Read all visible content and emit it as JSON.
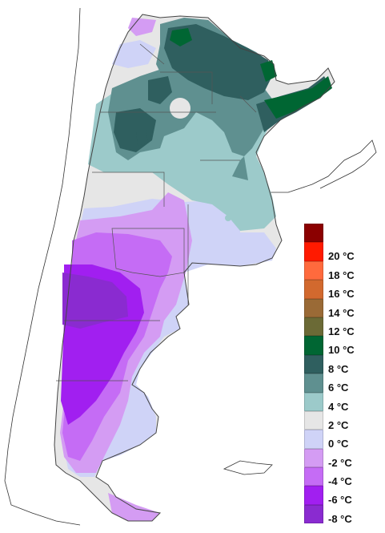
{
  "legend": {
    "items": [
      {
        "color": "#8b0000",
        "label": ""
      },
      {
        "color": "#ff1a00",
        "label": "20 °C"
      },
      {
        "color": "#ff6a3d",
        "label": "18 °C"
      },
      {
        "color": "#d2692e",
        "label": "16 °C"
      },
      {
        "color": "#9a6a36",
        "label": "14 °C"
      },
      {
        "color": "#6b6a36",
        "label": "12 °C"
      },
      {
        "color": "#006633",
        "label": "10 °C"
      },
      {
        "color": "#2f5f5f",
        "label": "8 °C"
      },
      {
        "color": "#5f9090",
        "label": "6 °C"
      },
      {
        "color": "#9ccaca",
        "label": "4 °C"
      },
      {
        "color": "#e6e6e6",
        "label": "2 °C"
      },
      {
        "color": "#cfd3f7",
        "label": "0 °C"
      },
      {
        "color": "#d49cf3",
        "label": "-2 °C"
      },
      {
        "color": "#c56cf5",
        "label": "-4 °C"
      },
      {
        "color": "#a11ff0",
        "label": "-6 °C"
      },
      {
        "color": "#8a2bd0",
        "label": "-8 °C"
      }
    ]
  },
  "colors": {
    "outline": "#444444",
    "province_border": "#555555",
    "neighbor_outline": "#222222"
  }
}
